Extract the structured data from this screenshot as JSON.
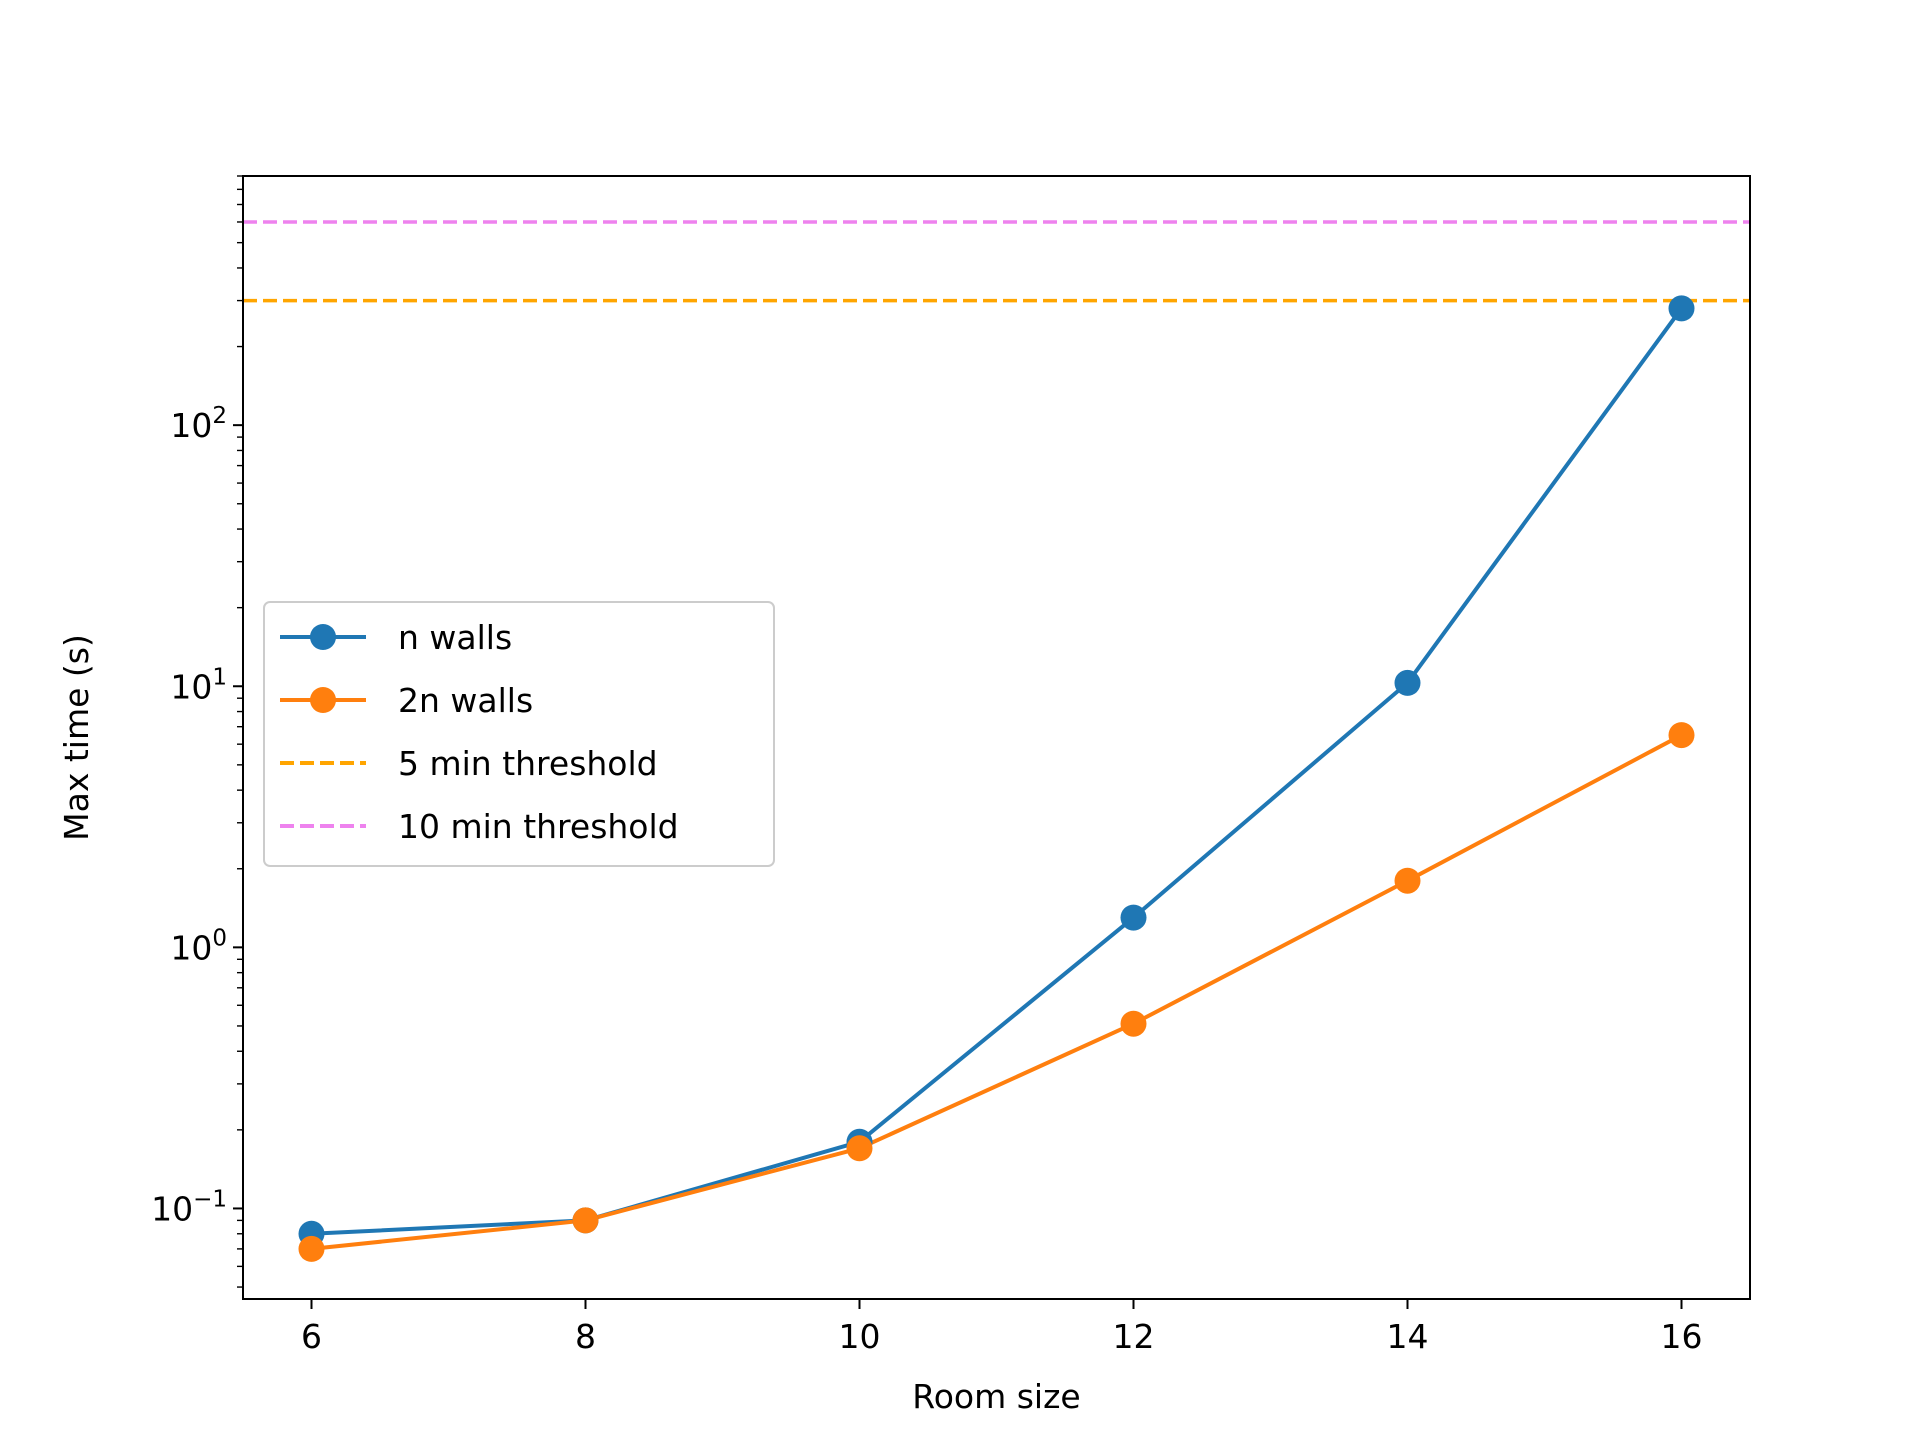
{
  "chart_data": {
    "type": "line",
    "xlabel": "Room size",
    "ylabel": "Max time (s)",
    "yscale": "log",
    "xlim": [
      5.5,
      16.5
    ],
    "ylim": [
      0.045,
      900
    ],
    "x_ticks": [
      {
        "value": 6,
        "label": "6"
      },
      {
        "value": 8,
        "label": "8"
      },
      {
        "value": 10,
        "label": "10"
      },
      {
        "value": 12,
        "label": "12"
      },
      {
        "value": 14,
        "label": "14"
      },
      {
        "value": 16,
        "label": "16"
      }
    ],
    "y_ticks": [
      {
        "value": 0.1,
        "base": "10",
        "exp": "−1"
      },
      {
        "value": 1,
        "base": "10",
        "exp": "0"
      },
      {
        "value": 10,
        "base": "10",
        "exp": "1"
      },
      {
        "value": 100,
        "base": "10",
        "exp": "2"
      }
    ],
    "x": [
      6,
      8,
      10,
      12,
      14,
      16
    ],
    "series": [
      {
        "name": "n walls",
        "color": "#1f77b4",
        "values": [
          0.08,
          0.09,
          0.18,
          1.3,
          10.3,
          280
        ]
      },
      {
        "name": "2n walls",
        "color": "#ff7f0e",
        "values": [
          0.07,
          0.09,
          0.17,
          0.51,
          1.8,
          6.5
        ]
      }
    ],
    "reference_lines": [
      {
        "name": "5 min threshold",
        "value": 300,
        "color": "#ffa500",
        "style": "dashed"
      },
      {
        "name": "10 min threshold",
        "value": 600,
        "color": "#ee82ee",
        "style": "dashed"
      }
    ],
    "grid": false,
    "legend_position": "center-left"
  }
}
